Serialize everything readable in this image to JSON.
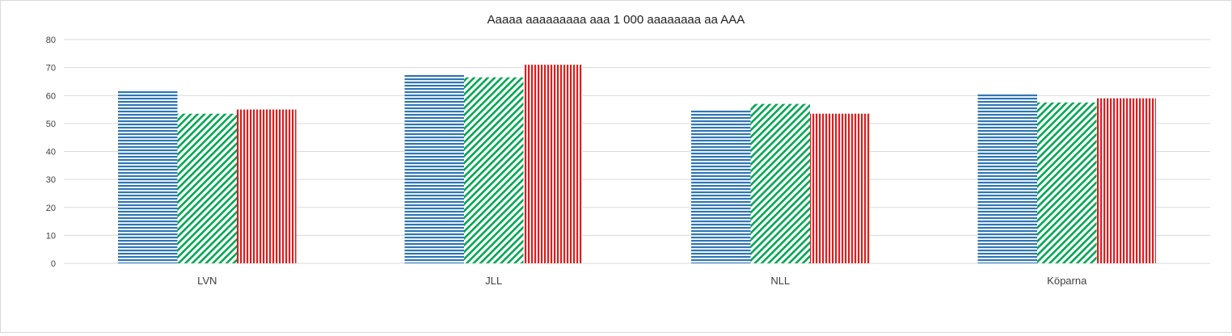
{
  "chart_data": {
    "type": "bar",
    "title": "Aaaaa aaaaaaaaa aaa 1 000 aaaaaaaa aa AAA",
    "xlabel": "",
    "ylabel": "",
    "ylim": [
      0,
      80
    ],
    "yticks": [
      0,
      10,
      20,
      30,
      40,
      50,
      60,
      70,
      80
    ],
    "grid": true,
    "categories": [
      "LVN",
      "JLL",
      "NLL",
      "Köparna"
    ],
    "series": [
      {
        "color": "#2e75b6",
        "pattern": "horizontal-stripes",
        "values": [
          62,
          67.5,
          55,
          60.5
        ]
      },
      {
        "color": "#00a651",
        "pattern": "diagonal-stripes",
        "values": [
          53.5,
          66.5,
          57,
          57.5
        ]
      },
      {
        "color": "#e31a1c",
        "pattern": "vertical-stripes",
        "values": [
          55,
          71,
          53.5,
          59
        ]
      }
    ]
  }
}
